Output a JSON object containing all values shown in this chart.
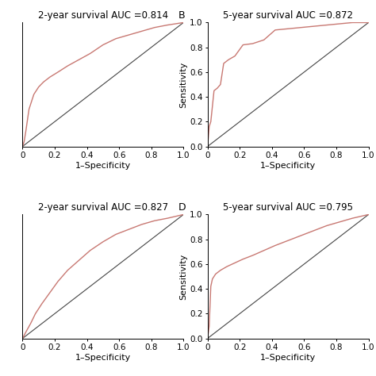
{
  "panels": [
    {
      "label": "",
      "title": "2-year survival AUC =0.814",
      "show_ylabel": false,
      "show_yticks": false,
      "roc_x": [
        0.0,
        0.01,
        0.02,
        0.04,
        0.07,
        0.1,
        0.13,
        0.17,
        0.22,
        0.28,
        0.35,
        0.42,
        0.5,
        0.58,
        0.66,
        0.74,
        0.82,
        0.9,
        1.0
      ],
      "roc_y": [
        0.0,
        0.04,
        0.12,
        0.3,
        0.42,
        0.48,
        0.52,
        0.56,
        0.6,
        0.65,
        0.7,
        0.75,
        0.82,
        0.87,
        0.9,
        0.93,
        0.96,
        0.98,
        1.0
      ]
    },
    {
      "label": "B",
      "title": "5-year survival AUC =0.872",
      "show_ylabel": true,
      "show_yticks": true,
      "roc_x": [
        0.0,
        0.01,
        0.02,
        0.04,
        0.06,
        0.08,
        0.1,
        0.13,
        0.17,
        0.22,
        0.28,
        0.35,
        0.42,
        0.5,
        0.58,
        0.66,
        0.74,
        0.82,
        0.9,
        1.0
      ],
      "roc_y": [
        0.0,
        0.16,
        0.2,
        0.45,
        0.47,
        0.5,
        0.67,
        0.7,
        0.73,
        0.82,
        0.83,
        0.86,
        0.94,
        0.95,
        0.96,
        0.97,
        0.98,
        0.99,
        1.0,
        1.0
      ]
    },
    {
      "label": "",
      "title": "2-year survival AUC =0.827",
      "show_ylabel": false,
      "show_yticks": false,
      "roc_x": [
        0.0,
        0.02,
        0.05,
        0.08,
        0.12,
        0.17,
        0.22,
        0.28,
        0.35,
        0.42,
        0.5,
        0.58,
        0.66,
        0.74,
        0.82,
        0.9,
        1.0
      ],
      "roc_y": [
        0.0,
        0.05,
        0.12,
        0.2,
        0.28,
        0.37,
        0.46,
        0.55,
        0.63,
        0.71,
        0.78,
        0.84,
        0.88,
        0.92,
        0.95,
        0.97,
        1.0
      ]
    },
    {
      "label": "D",
      "title": "5-year survival AUC =0.795",
      "show_ylabel": true,
      "show_yticks": true,
      "roc_x": [
        0.0,
        0.01,
        0.02,
        0.03,
        0.05,
        0.08,
        0.12,
        0.17,
        0.22,
        0.28,
        0.35,
        0.42,
        0.5,
        0.58,
        0.66,
        0.74,
        0.82,
        0.9,
        1.0
      ],
      "roc_y": [
        0.0,
        0.1,
        0.42,
        0.48,
        0.52,
        0.55,
        0.58,
        0.61,
        0.64,
        0.67,
        0.71,
        0.75,
        0.79,
        0.83,
        0.87,
        0.91,
        0.94,
        0.97,
        1.0
      ]
    }
  ],
  "roc_color": "#c87872",
  "diag_color": "#444444",
  "xlabel": "1–Specificity",
  "ylabel": "Sensitivity",
  "yticks": [
    0.0,
    0.2,
    0.4,
    0.6,
    0.8,
    1.0
  ],
  "xticks": [
    0.0,
    0.2,
    0.4,
    0.6,
    0.8,
    1.0
  ],
  "xtick_labels": [
    "0",
    "0.2",
    "0.4",
    "0.6",
    "0.8",
    "1.0"
  ],
  "ytick_labels": [
    "0.0",
    "0.2",
    "0.4",
    "0.6",
    "0.8",
    "1.0"
  ],
  "title_fontsize": 8.5,
  "label_fontsize": 9,
  "tick_fontsize": 7.5,
  "axis_label_fontsize": 8
}
